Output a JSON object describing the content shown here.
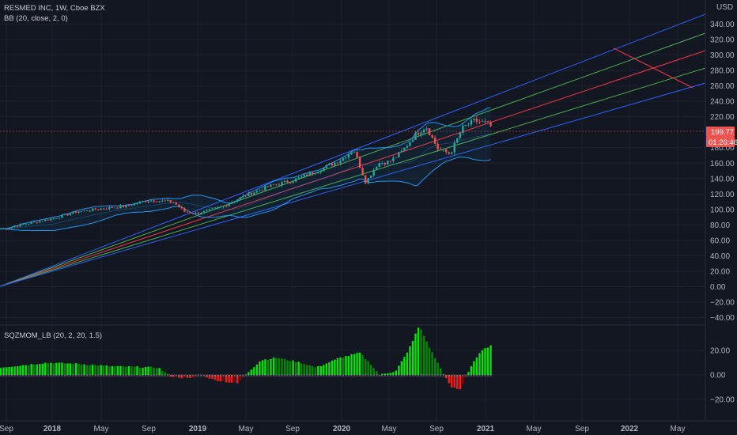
{
  "header": {
    "title": "RESMED INC, 1W, Cboe BZX",
    "indicator": "BB (20, close, 2, 0)",
    "currency": "USD",
    "oscillator_label": "SQZMOM_LB (20, 2, 20, 1.5)"
  },
  "price_tags": {
    "last": "199.77",
    "countdown": "01:26:46"
  },
  "axis": {
    "price_ticks": [
      "340.00",
      "320.00",
      "300.00",
      "280.00",
      "260.00",
      "240.00",
      "220.00",
      "180.00",
      "160.00",
      "140.00",
      "120.00",
      "100.00",
      "80.00",
      "60.00",
      "40.00",
      "20.00",
      "0.00",
      "−20.00",
      "−40.00"
    ],
    "osc_ticks": [
      "20.00",
      "0.00",
      "−20.00"
    ],
    "time_ticks": [
      "Sep",
      "2018",
      "May",
      "Sep",
      "2019",
      "May",
      "Sep",
      "2020",
      "May",
      "Sep",
      "2021",
      "May",
      "Sep",
      "2022",
      "May"
    ]
  },
  "colors": {
    "background": "#131722",
    "up": "#26a69a",
    "down": "#ef5350",
    "fan_blue": "#2962ff",
    "fan_green": "#4caf50",
    "fan_red": "#f23645",
    "bb": "#2196f3",
    "osc_up": "#00e600",
    "osc_down": "#ff0000"
  },
  "chart_data": {
    "type": "candlestick",
    "symbol": "RESMED INC",
    "interval": "1W",
    "exchange": "Cboe BZX",
    "ylim": [
      -40,
      350
    ],
    "last_price": 199.77,
    "price_series": [
      {
        "date": "2017-09",
        "value": 75
      },
      {
        "date": "2017-11",
        "value": 82
      },
      {
        "date": "2018-01",
        "value": 88
      },
      {
        "date": "2018-03",
        "value": 97
      },
      {
        "date": "2018-05",
        "value": 101
      },
      {
        "date": "2018-07",
        "value": 104
      },
      {
        "date": "2018-09",
        "value": 112
      },
      {
        "date": "2018-11",
        "value": 110
      },
      {
        "date": "2018-12",
        "value": 97
      },
      {
        "date": "2019-01",
        "value": 95
      },
      {
        "date": "2019-03",
        "value": 103
      },
      {
        "date": "2019-05",
        "value": 118
      },
      {
        "date": "2019-07",
        "value": 130
      },
      {
        "date": "2019-09",
        "value": 138
      },
      {
        "date": "2019-11",
        "value": 150
      },
      {
        "date": "2020-01",
        "value": 165
      },
      {
        "date": "2020-02",
        "value": 178
      },
      {
        "date": "2020-03",
        "value": 135
      },
      {
        "date": "2020-04",
        "value": 160
      },
      {
        "date": "2020-05",
        "value": 162
      },
      {
        "date": "2020-06",
        "value": 175
      },
      {
        "date": "2020-07",
        "value": 195
      },
      {
        "date": "2020-08",
        "value": 208
      },
      {
        "date": "2020-09",
        "value": 178
      },
      {
        "date": "2020-10",
        "value": 172
      },
      {
        "date": "2020-11",
        "value": 205
      },
      {
        "date": "2020-12",
        "value": 215
      },
      {
        "date": "2021-01",
        "value": 212
      },
      {
        "date": "2021-02",
        "value": 199.77
      }
    ],
    "oscillator": {
      "name": "SQZMOM_LB",
      "ylim": [
        -30,
        40
      ]
    }
  }
}
